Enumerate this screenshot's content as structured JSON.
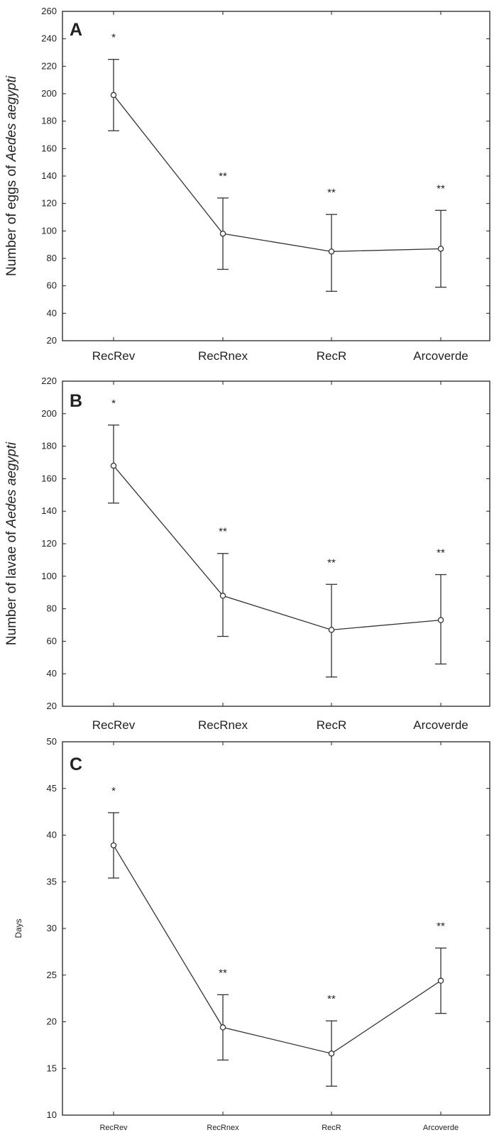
{
  "chart_data": [
    {
      "type": "line",
      "panel_label": "A",
      "ylabel_prefix": "Number of eggs of ",
      "ylabel_species": "Aedes aegypti",
      "categories": [
        "RecRev",
        "RecRnex",
        "RecR",
        "Arcoverde"
      ],
      "series": [
        {
          "values": [
            199,
            98,
            85,
            87
          ],
          "error_low": [
            173,
            72,
            56,
            59
          ],
          "error_high": [
            225,
            124,
            112,
            115
          ],
          "significance": [
            "*",
            "**",
            "**",
            "**"
          ]
        }
      ],
      "ylim": [
        20,
        260
      ],
      "yticks": [
        20,
        40,
        60,
        80,
        100,
        120,
        140,
        160,
        180,
        200,
        220,
        240,
        260
      ],
      "grid": false,
      "marker": "open-circle"
    },
    {
      "type": "line",
      "panel_label": "B",
      "ylabel_prefix": "Number of lavae of ",
      "ylabel_species": "Aedes aegypti",
      "categories": [
        "RecRev",
        "RecRnex",
        "RecR",
        "Arcoverde"
      ],
      "series": [
        {
          "values": [
            168,
            88,
            67,
            73
          ],
          "error_low": [
            145,
            63,
            38,
            46
          ],
          "error_high": [
            193,
            114,
            95,
            101
          ],
          "significance": [
            "*",
            "**",
            "**",
            "**"
          ]
        }
      ],
      "ylim": [
        20,
        220
      ],
      "yticks": [
        20,
        40,
        60,
        80,
        100,
        120,
        140,
        160,
        180,
        200,
        220
      ],
      "grid": false,
      "marker": "open-circle"
    },
    {
      "type": "line",
      "panel_label": "C",
      "ylabel_prefix": "Days",
      "ylabel_species": "",
      "categories": [
        "RecRev",
        "RecRnex",
        "RecR",
        "Arcoverde"
      ],
      "series": [
        {
          "values": [
            38.9,
            19.4,
            16.6,
            24.4
          ],
          "error_low": [
            35.4,
            15.9,
            13.1,
            20.9
          ],
          "error_high": [
            42.4,
            22.9,
            20.1,
            27.9
          ],
          "significance": [
            "*",
            "**",
            "**",
            "**"
          ]
        }
      ],
      "ylim": [
        10,
        50
      ],
      "yticks": [
        10,
        15,
        20,
        25,
        30,
        35,
        40,
        45,
        50
      ],
      "grid": false,
      "marker": "open-circle"
    }
  ]
}
